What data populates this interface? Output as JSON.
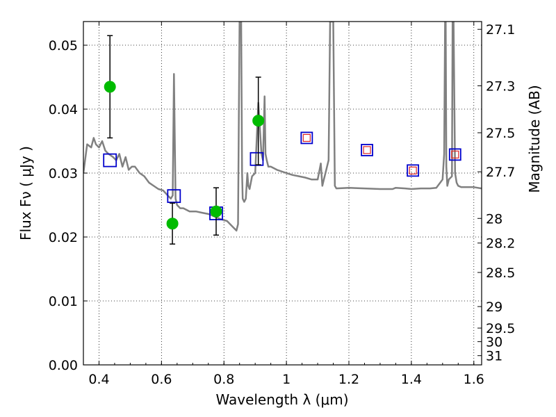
{
  "chart_data": {
    "type": "scatter",
    "xlabel": "Wavelength  λ (μm)",
    "ylabel": "Flux  Fν  ( μJy )",
    "ylabel_right": "Magnitude (AB)",
    "xlim": [
      0.35,
      1.625
    ],
    "ylim": [
      0.0,
      0.0537
    ],
    "xticks": [
      0.4,
      0.6,
      0.8,
      1.0,
      1.2,
      1.4,
      1.6
    ],
    "xtick_labels": [
      "0.4",
      "0.6",
      "0.8",
      "1",
      "1.2",
      "1.4",
      "1.6"
    ],
    "yticks": [
      0.0,
      0.01,
      0.02,
      0.03,
      0.04,
      0.05
    ],
    "ytick_labels": [
      "0.00",
      "0.01",
      "0.02",
      "0.03",
      "0.04",
      "0.05"
    ],
    "right_axis": {
      "labels": [
        "27.1",
        "27.3",
        "27.5",
        "27.7",
        "28",
        "28.2",
        "28.5",
        "29",
        "29.5",
        "30",
        "31"
      ],
      "values": [
        27.1,
        27.3,
        27.5,
        27.7,
        28.0,
        28.2,
        28.5,
        29.0,
        29.5,
        30.0,
        31.0
      ]
    },
    "grid": true,
    "series": [
      {
        "kind": "errorbar",
        "points": [
          {
            "x": 0.435,
            "y": 0.0435,
            "yerr_low": 0.0355,
            "yerr_high": 0.0515
          },
          {
            "x": 0.635,
            "y": 0.0221,
            "yerr_low": 0.0189,
            "yerr_high": 0.0253
          },
          {
            "x": 0.775,
            "y": 0.024,
            "yerr_low": 0.0203,
            "yerr_high": 0.0277
          },
          {
            "x": 0.91,
            "y": 0.0382,
            "yerr_low": 0.0313,
            "yerr_high": 0.045
          }
        ],
        "color": "#00bb00"
      },
      {
        "kind": "model_squares",
        "points": [
          {
            "x": 0.435,
            "y": 0.032
          },
          {
            "x": 0.64,
            "y": 0.0264
          },
          {
            "x": 0.775,
            "y": 0.0237
          },
          {
            "x": 0.905,
            "y": 0.0322
          }
        ],
        "color": "#0000cc"
      },
      {
        "kind": "model_squares_nested",
        "points": [
          {
            "x": 1.065,
            "y": 0.0355
          },
          {
            "x": 1.258,
            "y": 0.0336
          },
          {
            "x": 1.405,
            "y": 0.0304
          },
          {
            "x": 1.54,
            "y": 0.0329
          }
        ],
        "outer_color": "#0000cc",
        "inner_color": "#dd2222"
      },
      {
        "kind": "spectrum",
        "color": "#808080",
        "x": [
          0.35,
          0.362,
          0.375,
          0.383,
          0.39,
          0.4,
          0.41,
          0.42,
          0.43,
          0.445,
          0.455,
          0.465,
          0.475,
          0.485,
          0.495,
          0.505,
          0.515,
          0.53,
          0.545,
          0.56,
          0.575,
          0.59,
          0.605,
          0.62,
          0.63,
          0.636,
          0.64,
          0.645,
          0.65,
          0.66,
          0.67,
          0.69,
          0.71,
          0.73,
          0.75,
          0.77,
          0.79,
          0.81,
          0.83,
          0.84,
          0.845,
          0.85,
          0.852,
          0.855,
          0.858,
          0.86,
          0.865,
          0.87,
          0.875,
          0.878,
          0.882,
          0.89,
          0.9,
          0.91,
          0.92,
          0.925,
          0.93,
          0.933,
          0.937,
          0.942,
          0.95,
          0.97,
          1.0,
          1.02,
          1.04,
          1.06,
          1.08,
          1.1,
          1.11,
          1.115,
          1.12,
          1.125,
          1.135,
          1.14,
          1.145,
          1.15,
          1.155,
          1.16,
          1.2,
          1.25,
          1.3,
          1.34,
          1.35,
          1.38,
          1.4,
          1.43,
          1.46,
          1.48,
          1.5,
          1.505,
          1.508,
          1.51,
          1.512,
          1.515,
          1.52,
          1.53,
          1.532,
          1.535,
          1.54,
          1.545,
          1.55,
          1.56,
          1.6,
          1.625
        ],
        "y": [
          0.03,
          0.0345,
          0.034,
          0.0355,
          0.0345,
          0.034,
          0.035,
          0.0335,
          0.033,
          0.0325,
          0.032,
          0.033,
          0.031,
          0.0325,
          0.0305,
          0.031,
          0.031,
          0.03,
          0.0295,
          0.0285,
          0.028,
          0.0275,
          0.0273,
          0.0265,
          0.026,
          0.0265,
          0.0455,
          0.026,
          0.025,
          0.0245,
          0.0245,
          0.024,
          0.024,
          0.0238,
          0.0236,
          0.0232,
          0.0228,
          0.0225,
          0.0215,
          0.021,
          0.022,
          0.0537,
          0.0537,
          0.0537,
          0.03,
          0.026,
          0.0255,
          0.026,
          0.03,
          0.028,
          0.0275,
          0.0295,
          0.03,
          0.041,
          0.033,
          0.032,
          0.042,
          0.033,
          0.032,
          0.031,
          0.031,
          0.0305,
          0.03,
          0.0297,
          0.0295,
          0.0293,
          0.029,
          0.029,
          0.0315,
          0.028,
          0.029,
          0.03,
          0.032,
          0.0537,
          0.0537,
          0.0537,
          0.028,
          0.0276,
          0.0277,
          0.0276,
          0.0275,
          0.0275,
          0.0277,
          0.0276,
          0.0275,
          0.0276,
          0.0276,
          0.0277,
          0.029,
          0.033,
          0.0537,
          0.0537,
          0.031,
          0.028,
          0.029,
          0.0295,
          0.0537,
          0.0537,
          0.03,
          0.0285,
          0.028,
          0.0278,
          0.0278,
          0.0276
        ]
      }
    ]
  }
}
